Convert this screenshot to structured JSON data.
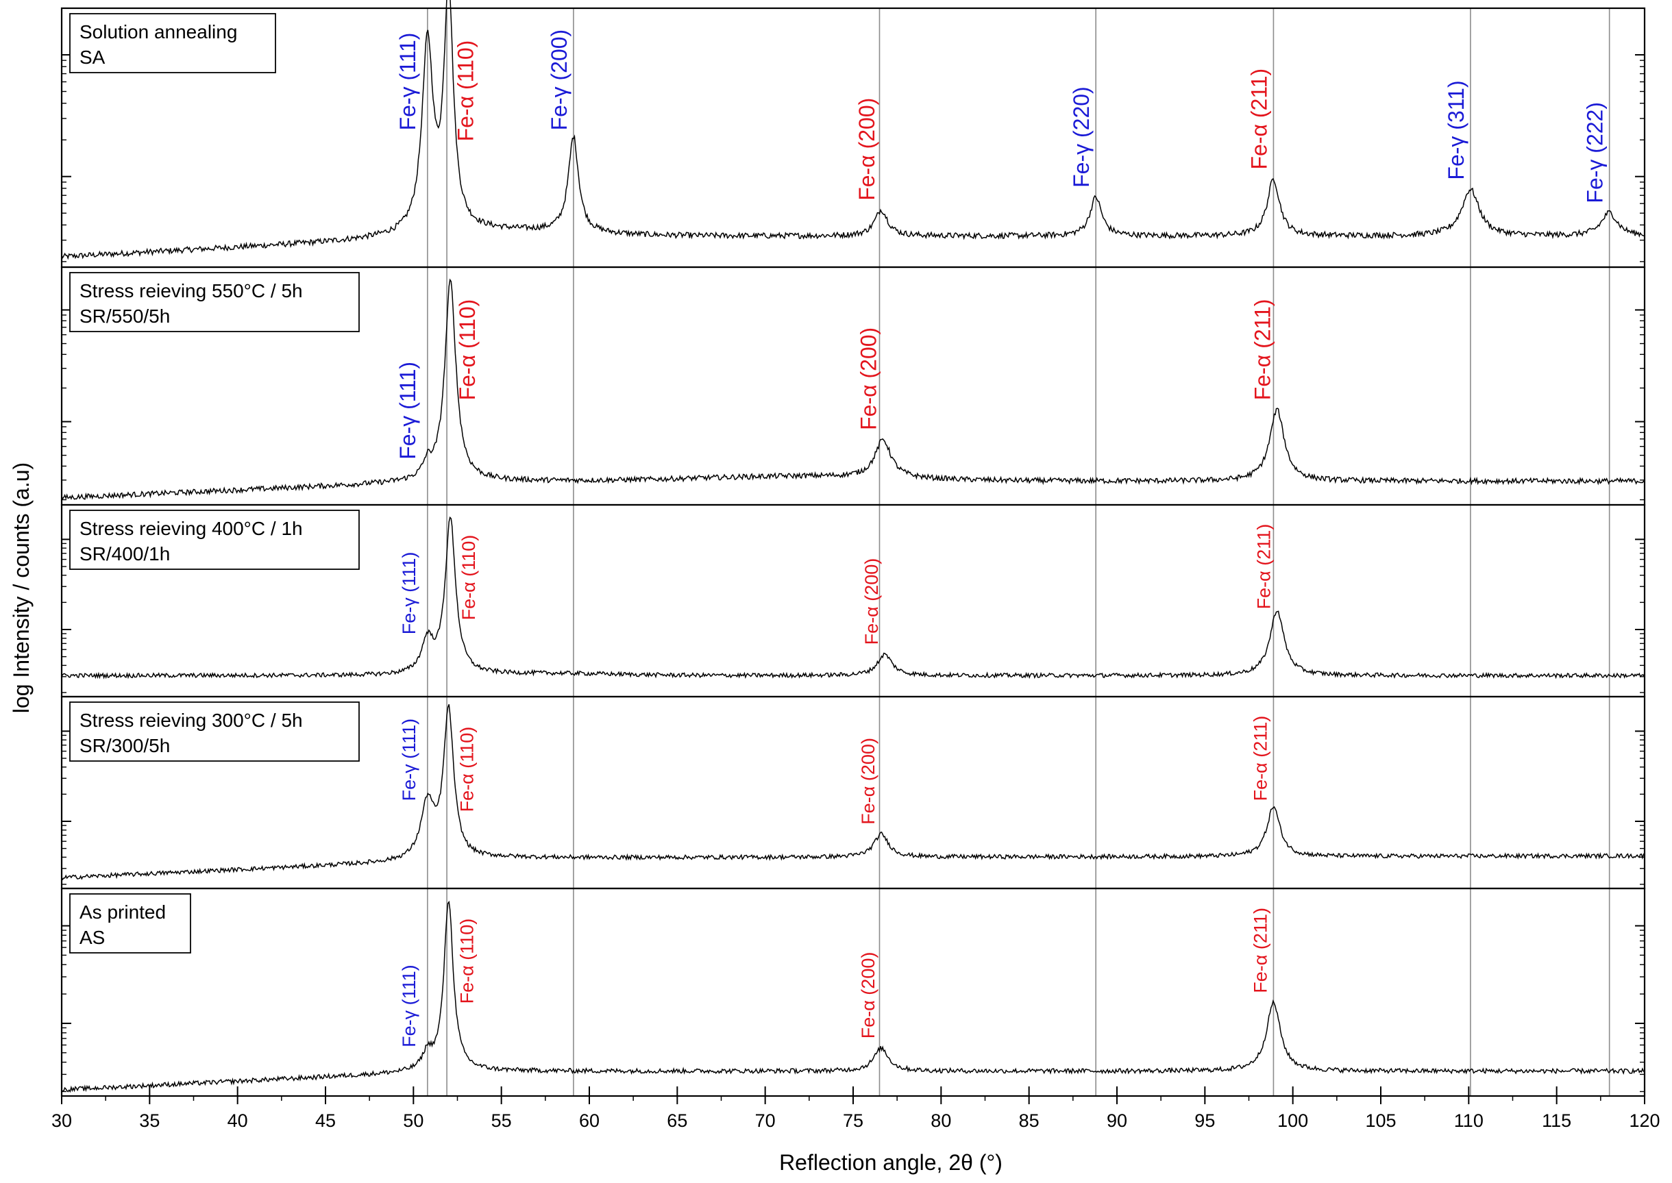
{
  "chart_data": {
    "type": "line",
    "xlabel": "Reflection angle, 2θ (°)",
    "ylabel": "log Intensity / counts (a.u)",
    "xlim": [
      30,
      120
    ],
    "x_ticks": [
      30,
      35,
      40,
      45,
      50,
      55,
      60,
      65,
      70,
      75,
      80,
      85,
      90,
      95,
      100,
      105,
      110,
      115,
      120
    ],
    "reference_lines": [
      50.8,
      51.9,
      59.1,
      76.5,
      88.8,
      98.9,
      110.1,
      118.0
    ],
    "colors": {
      "gamma": "#1a1ad6",
      "alpha": "#e3141c",
      "line": "#000000",
      "grid": "#8c8c8c"
    },
    "panels": [
      {
        "id": "SA",
        "legend": [
          "Solution annealing",
          "SA"
        ],
        "peaks": [
          {
            "phase": "gamma",
            "label": "Fe-γ (111)",
            "x": 50.8,
            "height": 0.72,
            "width": 0.38
          },
          {
            "phase": "alpha",
            "label": "Fe-α (110)",
            "x": 52.0,
            "height": 0.92,
            "width": 0.32
          },
          {
            "phase": "gamma",
            "label": "Fe-γ (200)",
            "x": 59.1,
            "height": 0.37,
            "width": 0.35
          },
          {
            "phase": "alpha",
            "label": "Fe-α (200)",
            "x": 76.6,
            "height": 0.1,
            "width": 0.45
          },
          {
            "phase": "gamma",
            "label": "Fe-γ (220)",
            "x": 88.8,
            "height": 0.15,
            "width": 0.4
          },
          {
            "phase": "alpha",
            "label": "Fe-α (211)",
            "x": 98.9,
            "height": 0.22,
            "width": 0.42
          },
          {
            "phase": "gamma",
            "label": "Fe-γ (311)",
            "x": 110.1,
            "height": 0.18,
            "width": 0.6
          },
          {
            "phase": "gamma",
            "label": "Fe-γ (222)",
            "x": 118.0,
            "height": 0.09,
            "width": 0.55
          }
        ]
      },
      {
        "id": "SR550",
        "legend": [
          "Stress reieving 550°C / 5h",
          "SR/550/5h"
        ],
        "peaks": [
          {
            "phase": "gamma",
            "label": "Fe-γ (111)",
            "x": 50.8,
            "height": 0.06,
            "width": 0.3
          },
          {
            "phase": "alpha",
            "label": "Fe-α (110)",
            "x": 52.1,
            "height": 0.84,
            "width": 0.38
          },
          {
            "phase": "alpha",
            "label": "Fe-α (200)",
            "x": 76.7,
            "height": 0.16,
            "width": 0.55
          },
          {
            "phase": "alpha",
            "label": "Fe-α (211)",
            "x": 99.1,
            "height": 0.3,
            "width": 0.5
          }
        ]
      },
      {
        "id": "SR400",
        "legend": [
          "Stress reieving 400°C / 1h",
          "SR/400/1h"
        ],
        "peaks": [
          {
            "phase": "gamma",
            "label": "Fe-γ (111)",
            "x": 50.8,
            "height": 0.17,
            "width": 0.4
          },
          {
            "phase": "alpha",
            "label": "Fe-α (110)",
            "x": 52.1,
            "height": 0.81,
            "width": 0.36
          },
          {
            "phase": "alpha",
            "label": "Fe-α (200)",
            "x": 76.8,
            "height": 0.11,
            "width": 0.5
          },
          {
            "phase": "alpha",
            "label": "Fe-α (211)",
            "x": 99.1,
            "height": 0.34,
            "width": 0.48
          }
        ]
      },
      {
        "id": "SR300",
        "legend": [
          "Stress reieving 300°C / 5h",
          "SR/300/5h"
        ],
        "peaks": [
          {
            "phase": "gamma",
            "label": "Fe-γ (111)",
            "x": 50.8,
            "height": 0.29,
            "width": 0.45
          },
          {
            "phase": "alpha",
            "label": "Fe-α (110)",
            "x": 52.0,
            "height": 0.77,
            "width": 0.35
          },
          {
            "phase": "alpha",
            "label": "Fe-α (200)",
            "x": 76.6,
            "height": 0.12,
            "width": 0.5
          },
          {
            "phase": "alpha",
            "label": "Fe-α (211)",
            "x": 98.9,
            "height": 0.26,
            "width": 0.45
          }
        ]
      },
      {
        "id": "AS",
        "legend": [
          "As printed",
          "AS"
        ],
        "peaks": [
          {
            "phase": "gamma",
            "label": "Fe-γ (111)",
            "x": 50.8,
            "height": 0.08,
            "width": 0.35
          },
          {
            "phase": "alpha",
            "label": "Fe-α (110)",
            "x": 52.0,
            "height": 0.82,
            "width": 0.32
          },
          {
            "phase": "alpha",
            "label": "Fe-α (200)",
            "x": 76.6,
            "height": 0.11,
            "width": 0.5
          },
          {
            "phase": "alpha",
            "label": "Fe-α (211)",
            "x": 98.9,
            "height": 0.33,
            "width": 0.48
          }
        ]
      }
    ]
  }
}
